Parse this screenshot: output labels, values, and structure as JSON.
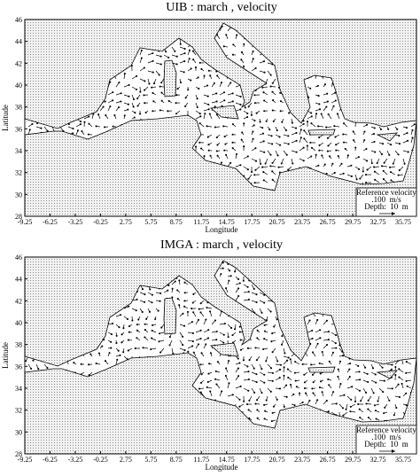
{
  "panels": [
    {
      "title": "UIB : march , velocity",
      "x_label": "Longitude",
      "y_label": "Latitude",
      "x_ticks": [
        -9.25,
        -6.25,
        -3.25,
        -0.25,
        2.75,
        5.75,
        8.75,
        11.75,
        14.75,
        17.75,
        20.75,
        23.75,
        26.75,
        29.75,
        32.75,
        35.75
      ],
      "y_ticks": [
        28,
        30,
        32,
        34,
        36,
        38,
        40,
        42,
        44,
        46
      ],
      "legend": {
        "title": "Reference velocity",
        "speed": ".100  m/s",
        "depth": "Depth:  10  m"
      }
    },
    {
      "title": "IMGA : march , velocity",
      "x_label": "Longitude",
      "y_label": "Latitude",
      "x_ticks": [
        -9.25,
        -6.25,
        -3.25,
        -0.25,
        2.75,
        5.75,
        8.75,
        11.75,
        14.75,
        17.75,
        20.75,
        23.75,
        26.75,
        29.75,
        32.75,
        35.75
      ],
      "y_ticks": [
        28,
        30,
        32,
        34,
        36,
        38,
        40,
        42,
        44,
        46
      ],
      "legend": {
        "title": "Reference velocity",
        "speed": ".100  m/s",
        "depth": "Depth:  10  m"
      }
    }
  ]
}
